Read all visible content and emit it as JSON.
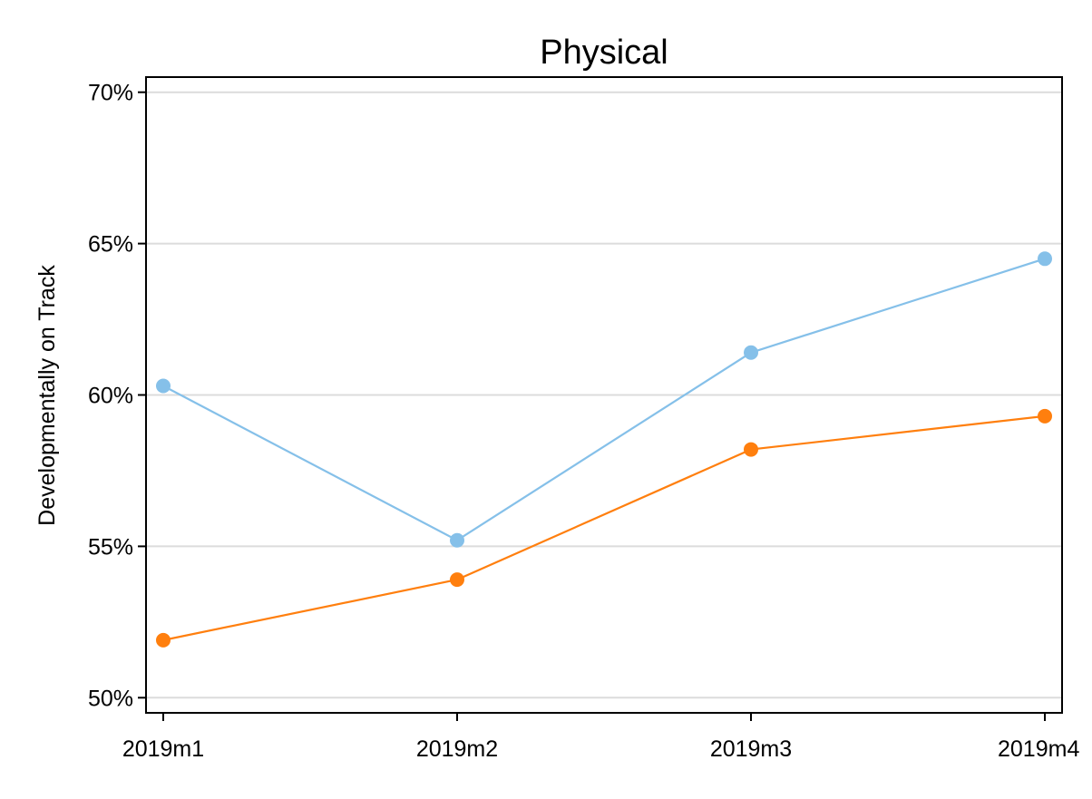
{
  "chart_data": {
    "type": "line",
    "title": "Physical",
    "xlabel": "",
    "ylabel": "Developmentally on Track",
    "categories": [
      "2019m1",
      "2019m2",
      "2019m3",
      "2019m4"
    ],
    "ylim": [
      49.5,
      70.5
    ],
    "yticks": [
      50,
      55,
      60,
      65,
      70
    ],
    "ytick_labels": [
      "50%",
      "55%",
      "60%",
      "65%",
      "70%"
    ],
    "grid": true,
    "legend": "none",
    "series": [
      {
        "color": "#85C0E9",
        "values": [
          60.3,
          55.2,
          61.4,
          64.5
        ]
      },
      {
        "color": "#FF7F0E",
        "values": [
          51.9,
          53.9,
          58.2,
          59.3
        ]
      }
    ]
  }
}
